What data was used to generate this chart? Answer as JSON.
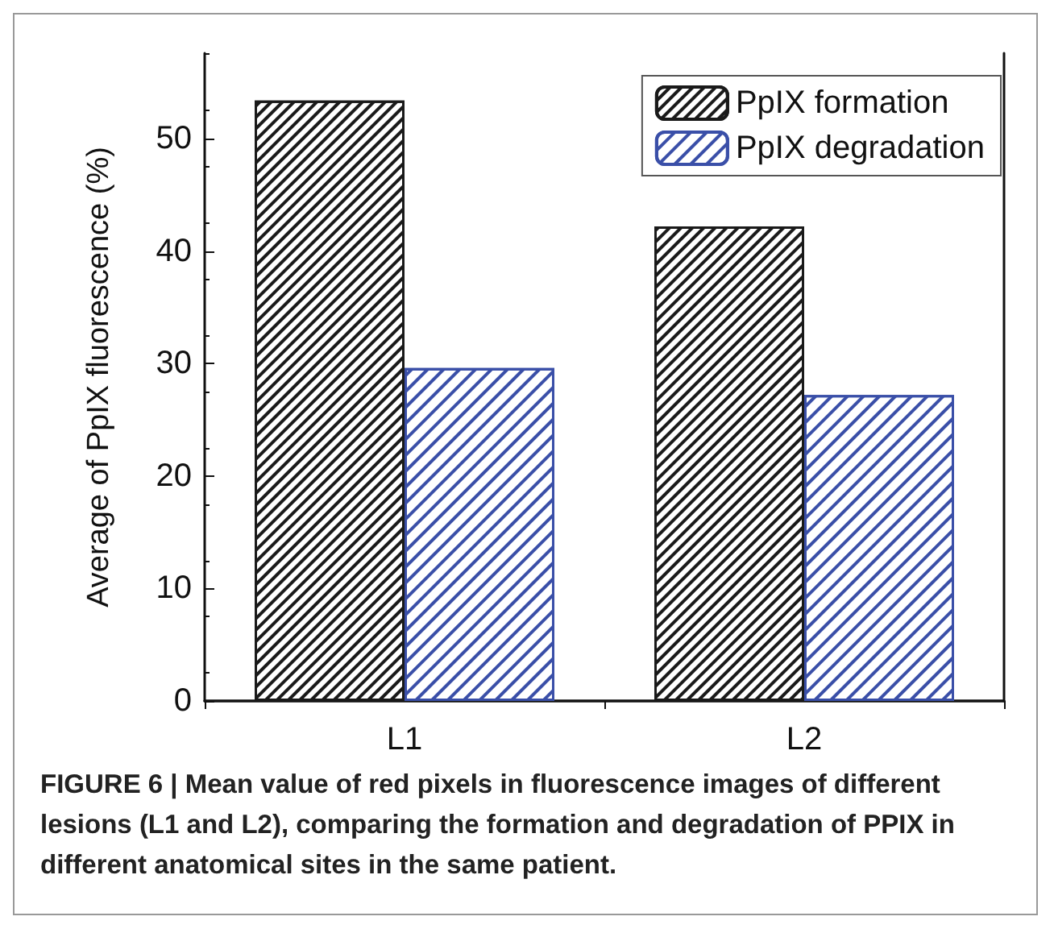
{
  "chart_data": {
    "type": "bar",
    "ylabel": "Average of PpIX fluorescence (%)",
    "categories": [
      "L1",
      "L2"
    ],
    "series": [
      {
        "name": "PpIX formation",
        "color": "#1a1a1a",
        "values": [
          53.4,
          42.2
        ]
      },
      {
        "name": "PpIX degradation",
        "color": "#3a4fa8",
        "values": [
          29.6,
          27.2
        ]
      }
    ],
    "ylim": [
      0,
      57.6
    ],
    "yticks": [
      0,
      10,
      20,
      30,
      40,
      50
    ],
    "grid": false,
    "legend": "top right",
    "annotations": [
      "FIGURE 6 | Mean value of red pixels in fluorescence images of different lesions (L1 and L2), comparing the formation and degradation of PPIX in different anatomical sites in the same patient."
    ]
  }
}
